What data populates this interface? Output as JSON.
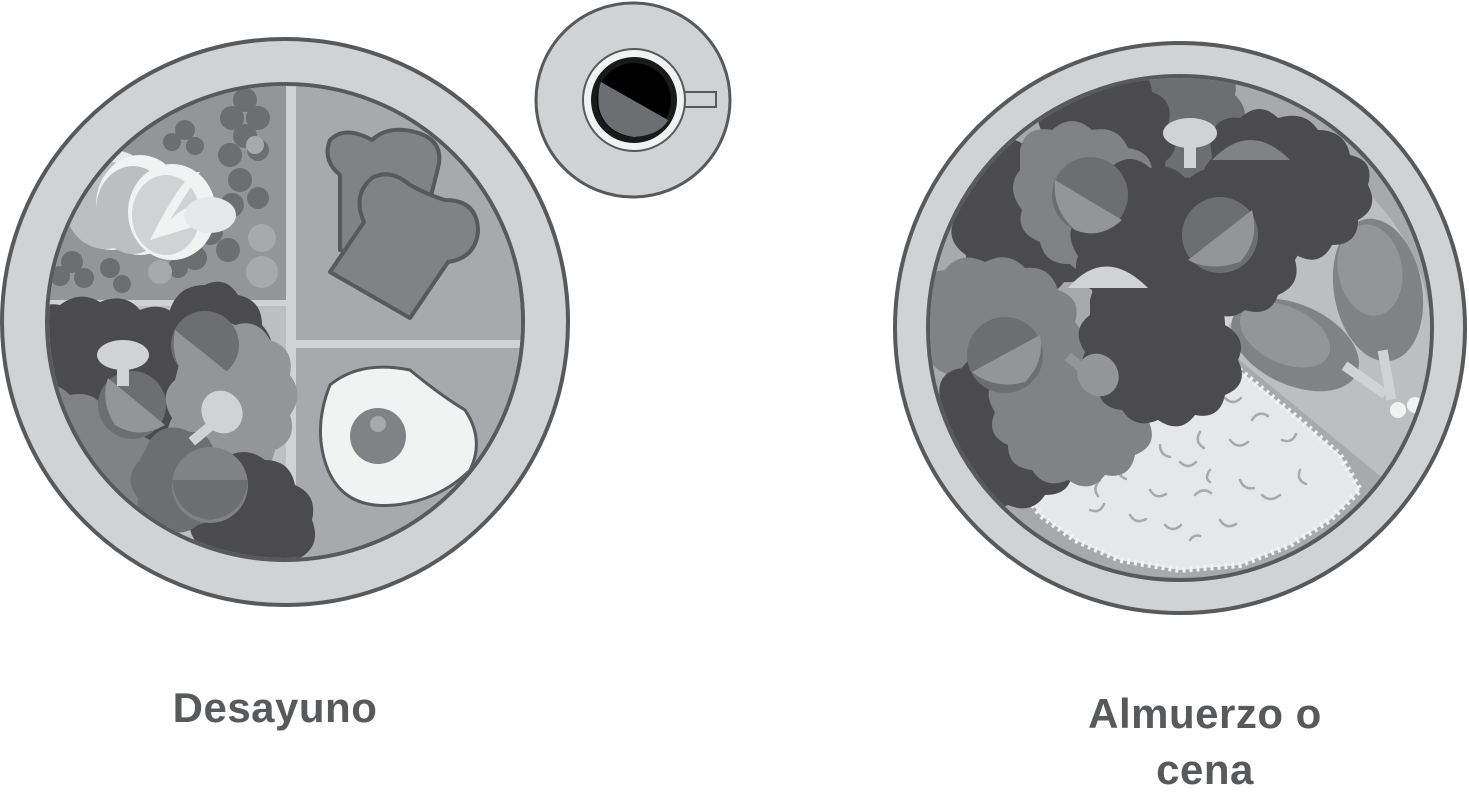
{
  "captions": {
    "breakfast": "Desayuno",
    "lunch_or_dinner": "Almuerzo o cena"
  },
  "icons": {
    "breakfast_plate": "breakfast-plate-icon",
    "coffee_cup": "coffee-cup-icon",
    "lunch_plate": "lunch-plate-icon"
  },
  "colors": {
    "outline": "#58595b",
    "plate_rim": "#d1d2d4",
    "plate_inner": "#bcbec0",
    "dark_leaf": "#4b4b4d",
    "mid_leaf": "#808285",
    "light_leaf": "#9d9fa2",
    "highlight": "#f1f2f2",
    "coffee": "#000000"
  }
}
